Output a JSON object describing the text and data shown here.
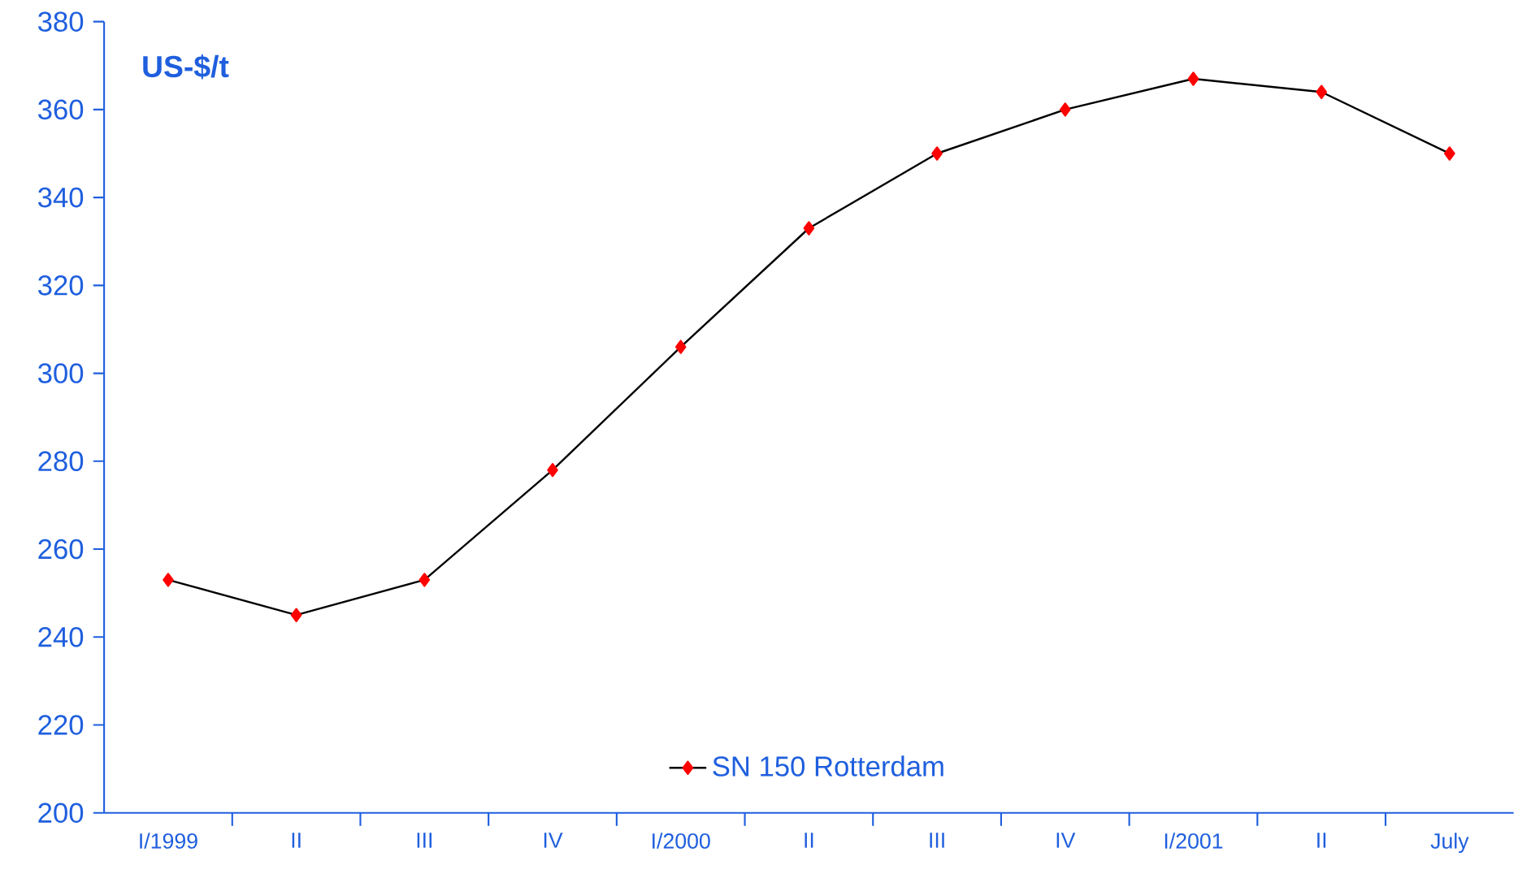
{
  "chart_data": {
    "type": "line",
    "ylabel": "US-$/t",
    "categories": [
      "I/1999",
      "II",
      "III",
      "IV",
      "I/2000",
      "II",
      "III",
      "IV",
      "I/2001",
      "II",
      "July"
    ],
    "series": [
      {
        "name": "SN 150 Rotterdam",
        "color": "#000000",
        "values": [
          253,
          245,
          253,
          278,
          306,
          333,
          350,
          360,
          367,
          364,
          350
        ]
      }
    ],
    "ylim": [
      200,
      380
    ],
    "yticks": [
      200,
      220,
      240,
      260,
      280,
      300,
      320,
      340,
      360,
      380
    ],
    "marker": "diamond",
    "legend": "bottom",
    "grid": false
  }
}
